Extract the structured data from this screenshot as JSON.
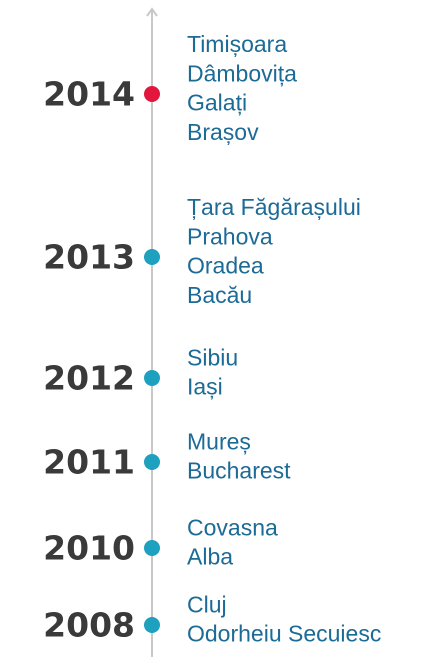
{
  "timeline": [
    {
      "year": "2014",
      "places": [
        "Timișoara",
        "Dâmbovița",
        "Galați",
        "Brașov"
      ]
    },
    {
      "year": "2013",
      "places": [
        "Țara Făgărașului",
        "Prahova",
        "Oradea",
        "Bacău"
      ]
    },
    {
      "year": "2012",
      "places": [
        "Sibiu",
        "Iași"
      ]
    },
    {
      "year": "2011",
      "places": [
        "Mureș",
        "Bucharest"
      ]
    },
    {
      "year": "2010",
      "places": [
        "Covasna",
        "Alba"
      ]
    },
    {
      "year": "2008",
      "places": [
        "Cluj",
        "Odorheiu Secuiesc"
      ]
    }
  ]
}
